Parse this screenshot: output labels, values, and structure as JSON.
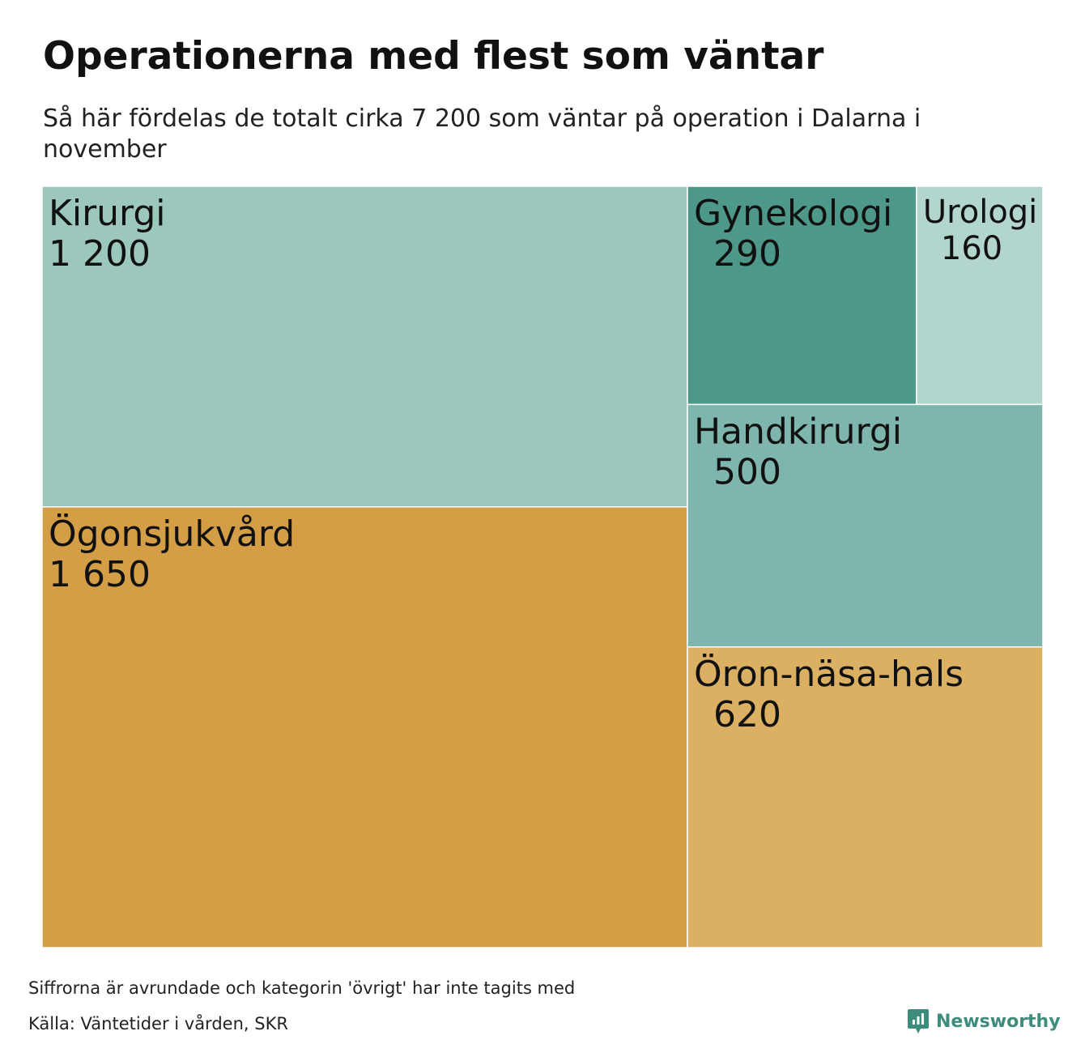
{
  "title": "Operationerna med flest som väntar",
  "subtitle": "Så här fördelas de totalt cirka 7 200 som väntar på operation i Dalarna i november",
  "chart_data": {
    "type": "treemap",
    "title": "Operationerna med flest som väntar",
    "subtitle": "Så här fördelas de totalt cirka 7 200 som väntar på operation i Dalarna i november",
    "items": [
      {
        "name": "Kirurgi",
        "value": 1200,
        "label": "1 200",
        "color": "#9bc7bc"
      },
      {
        "name": "Ögonsjukvård",
        "value": 1650,
        "label": "1 650",
        "color": "#d39e46"
      },
      {
        "name": "Gynekologi",
        "value": 290,
        "label": "290",
        "color": "#4d9889"
      },
      {
        "name": "Urologi",
        "value": 160,
        "label": "160",
        "color": "#b2d6ce"
      },
      {
        "name": "Handkirurgi",
        "value": 500,
        "label": "500",
        "color": "#7eb5ac"
      },
      {
        "name": "Öron-näsa-hals",
        "value": 620,
        "label": "620",
        "color": "#dbb063"
      }
    ]
  },
  "footer": {
    "note": "Siffrorna är avrundade och kategorin 'övrigt' har inte tagits med",
    "source": "Källa: Väntetider i vården, SKR",
    "brand": "Newsworthy",
    "brand_color": "#3d8c7c"
  }
}
